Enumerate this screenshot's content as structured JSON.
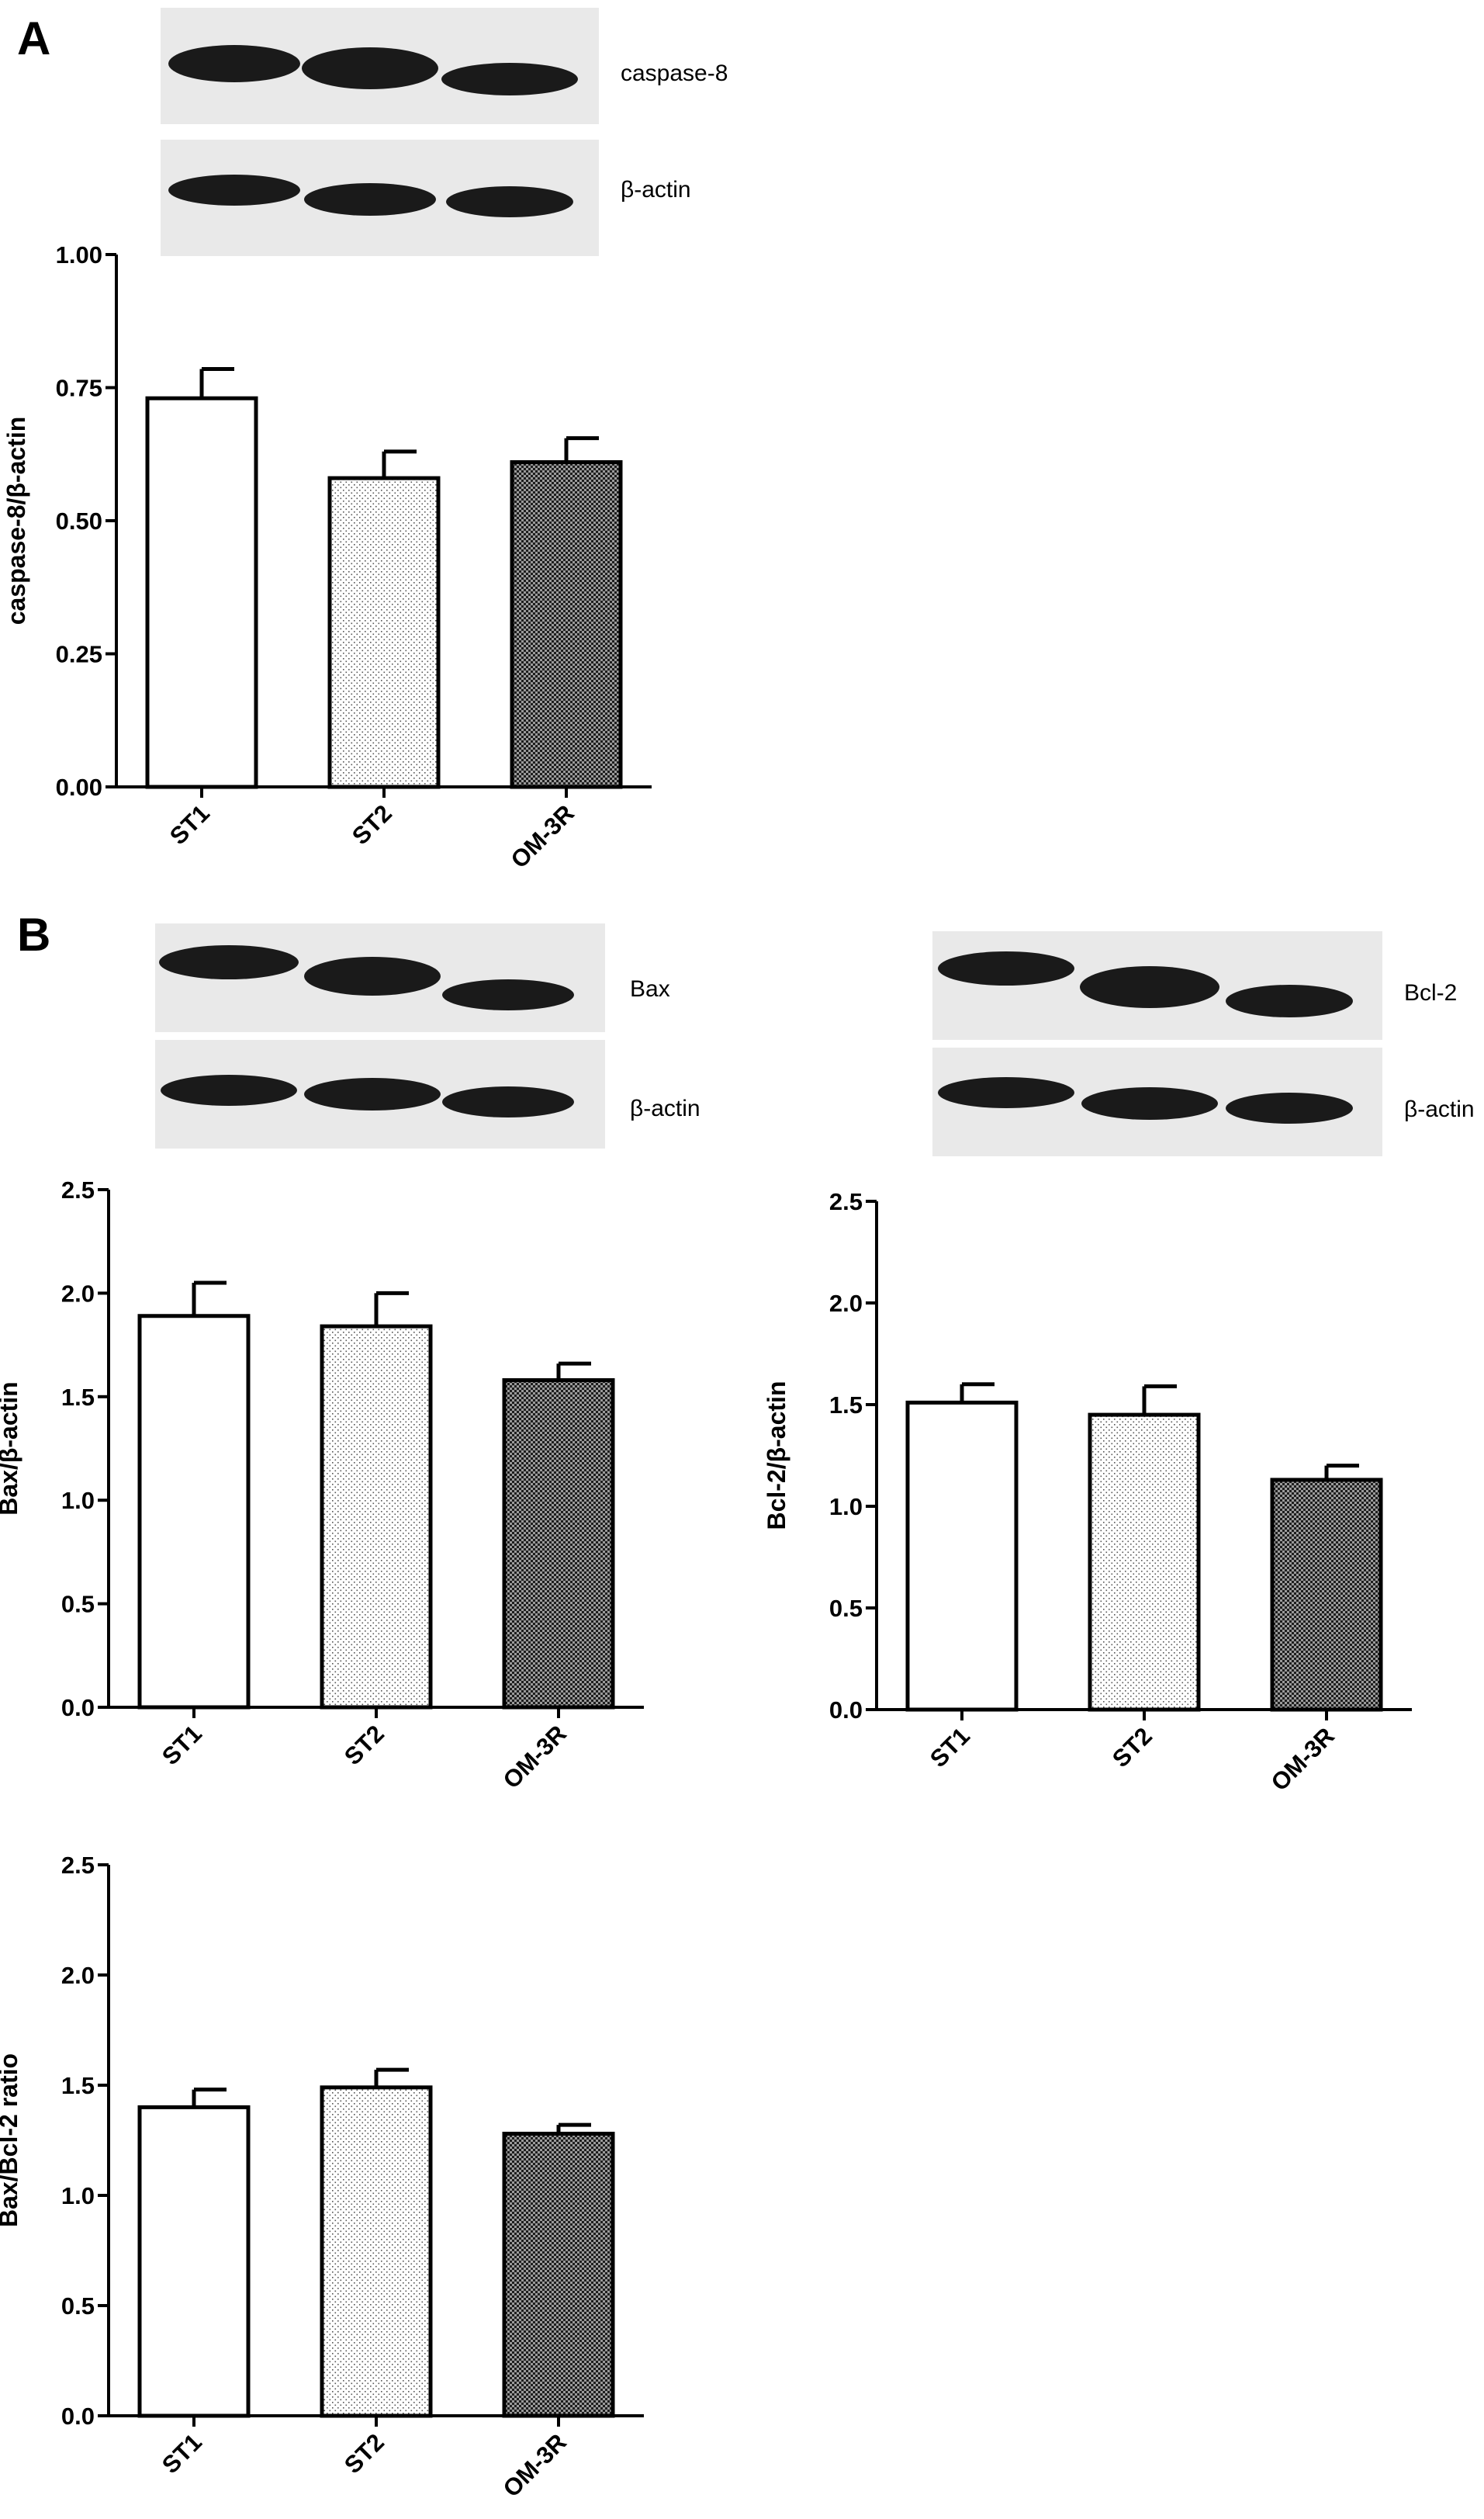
{
  "panel_labels": {
    "a": "A",
    "b": "B"
  },
  "blots": {
    "caspase8": {
      "protein_label": "caspase-8",
      "control_label": "β-actin"
    },
    "bax": {
      "protein_label": "Bax",
      "control_label": "β-actin"
    },
    "bcl2": {
      "protein_label": "Bcl-2",
      "control_label": "β-actin"
    }
  },
  "colors": {
    "bar_edge": "#000000",
    "background": "#ffffff",
    "band": "#1a1a1a"
  },
  "chart_data": [
    {
      "id": "caspase8",
      "type": "bar",
      "categories": [
        "ST1",
        "ST2",
        "OM-3R"
      ],
      "values": [
        0.73,
        0.58,
        0.61
      ],
      "errors": [
        0.055,
        0.05,
        0.045
      ],
      "fills": [
        "white",
        "fine-dots",
        "dense-checker"
      ],
      "ylabel": "caspase-8/β-actin",
      "ylim": [
        0,
        1.0
      ],
      "yticks": [
        "0.00",
        "0.25",
        "0.50",
        "0.75",
        "1.00"
      ],
      "grid": false
    },
    {
      "id": "bax",
      "type": "bar",
      "categories": [
        "ST1",
        "ST2",
        "OM-3R"
      ],
      "values": [
        1.89,
        1.84,
        1.58
      ],
      "errors": [
        0.16,
        0.16,
        0.08
      ],
      "fills": [
        "white",
        "fine-dots",
        "dense-checker"
      ],
      "ylabel": "Bax/β-actin",
      "ylim": [
        0,
        2.5
      ],
      "yticks": [
        "0.0",
        "0.5",
        "1.0",
        "1.5",
        "2.0",
        "2.5"
      ],
      "grid": false
    },
    {
      "id": "bcl2",
      "type": "bar",
      "categories": [
        "ST1",
        "ST2",
        "OM-3R"
      ],
      "values": [
        1.51,
        1.45,
        1.13
      ],
      "errors": [
        0.09,
        0.14,
        0.07
      ],
      "fills": [
        "white",
        "fine-dots",
        "dense-checker"
      ],
      "ylabel": "Bcl-2/β-actin",
      "ylim": [
        0,
        2.5
      ],
      "yticks": [
        "0.0",
        "0.5",
        "1.0",
        "1.5",
        "2.0",
        "2.5"
      ],
      "grid": false
    },
    {
      "id": "ratio",
      "type": "bar",
      "categories": [
        "ST1",
        "ST2",
        "OM-3R"
      ],
      "values": [
        1.4,
        1.49,
        1.28
      ],
      "errors": [
        0.08,
        0.08,
        0.04
      ],
      "fills": [
        "white",
        "fine-dots",
        "dense-checker"
      ],
      "ylabel": "Bax/Bcl-2 ratio",
      "ylim": [
        0,
        2.5
      ],
      "yticks": [
        "0.0",
        "0.5",
        "1.0",
        "1.5",
        "2.0",
        "2.5"
      ],
      "grid": false
    }
  ]
}
